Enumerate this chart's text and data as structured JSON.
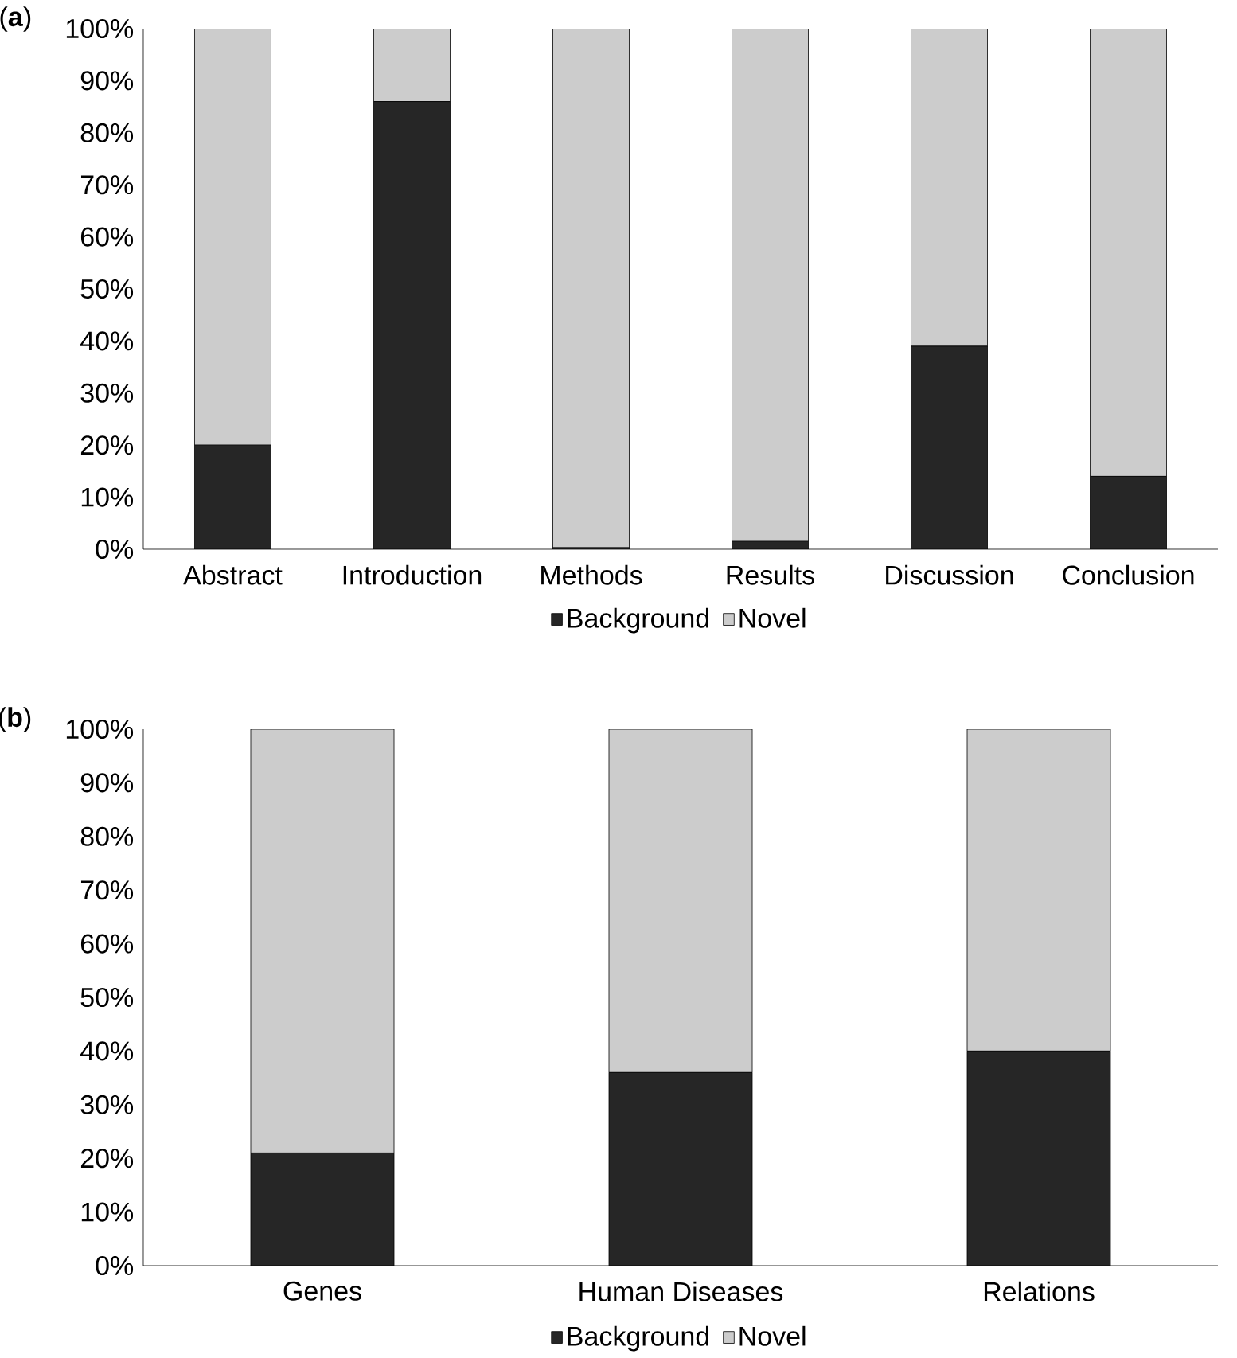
{
  "chart_data": [
    {
      "type": "bar",
      "title": "(**a**)",
      "stacked": true,
      "categories": [
        "Abstract",
        "Introduction",
        "Methods",
        "Results",
        "Discussion",
        "Conclusion"
      ],
      "series": [
        {
          "name": "Background",
          "color": "#262626",
          "values": [
            20,
            86,
            0.3,
            1.5,
            39,
            14
          ]
        },
        {
          "name": "Novel",
          "color": "#cccccc",
          "values": [
            80,
            14,
            99.7,
            98.5,
            61,
            86
          ]
        }
      ],
      "ylim": [
        0,
        100
      ],
      "yticks": [
        {
          "value": 0,
          "label": "0%"
        },
        {
          "value": 10,
          "label": "10%"
        },
        {
          "value": 20,
          "label": "20%"
        },
        {
          "value": 30,
          "label": "30%"
        },
        {
          "value": 40,
          "label": "40%"
        },
        {
          "value": 50,
          "label": "50%"
        },
        {
          "value": 60,
          "label": "60%"
        },
        {
          "value": 70,
          "label": "70%"
        },
        {
          "value": 80,
          "label": "80%"
        },
        {
          "value": 90,
          "label": "90%"
        },
        {
          "value": 100,
          "label": "100%"
        }
      ],
      "grid": false,
      "legend": "bottom"
    },
    {
      "type": "bar",
      "title": "(**b**)",
      "stacked": true,
      "categories": [
        "Genes",
        "Human Diseases",
        "Relations"
      ],
      "series": [
        {
          "name": "Background",
          "color": "#262626",
          "values": [
            21,
            36,
            40
          ]
        },
        {
          "name": "Novel",
          "color": "#cccccc",
          "values": [
            79,
            64,
            60
          ]
        }
      ],
      "ylim": [
        0,
        100
      ],
      "yticks": [
        {
          "value": 0,
          "label": "0%"
        },
        {
          "value": 10,
          "label": "10%"
        },
        {
          "value": 20,
          "label": "20%"
        },
        {
          "value": 30,
          "label": "30%"
        },
        {
          "value": 40,
          "label": "40%"
        },
        {
          "value": 50,
          "label": "50%"
        },
        {
          "value": 60,
          "label": "60%"
        },
        {
          "value": 70,
          "label": "70%"
        },
        {
          "value": 80,
          "label": "80%"
        },
        {
          "value": 90,
          "label": "90%"
        },
        {
          "value": 100,
          "label": "100%"
        }
      ],
      "grid": false,
      "legend": "bottom"
    }
  ]
}
